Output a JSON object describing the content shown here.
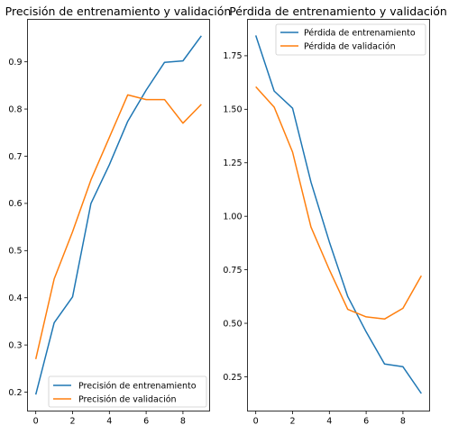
{
  "chart_data": [
    {
      "type": "line",
      "title": "Precisión de entrenamiento y validación",
      "xlabel": "",
      "ylabel": "",
      "x": [
        0,
        1,
        2,
        3,
        4,
        5,
        6,
        7,
        8,
        9
      ],
      "xlim": [
        -0.45,
        9.45
      ],
      "ylim": [
        0.16,
        0.99
      ],
      "xticks": [
        0,
        2,
        4,
        6,
        8
      ],
      "yticks": [
        0.2,
        0.3,
        0.4,
        0.5,
        0.6,
        0.7,
        0.8,
        0.9
      ],
      "ytick_labels": [
        "0.2",
        "0.3",
        "0.4",
        "0.5",
        "0.6",
        "0.7",
        "0.8",
        "0.9"
      ],
      "grid": false,
      "legend": "lower-right",
      "series": [
        {
          "name": "Precisión de entrenamiento",
          "color": "#1f77b4",
          "values": [
            0.195,
            0.347,
            0.402,
            0.6,
            0.682,
            0.774,
            0.84,
            0.899,
            0.902,
            0.955
          ]
        },
        {
          "name": "Precisión de validación",
          "color": "#ff7f0e",
          "values": [
            0.27,
            0.44,
            0.54,
            0.65,
            0.74,
            0.83,
            0.82,
            0.82,
            0.77,
            0.81
          ]
        }
      ]
    },
    {
      "type": "line",
      "title": "Pérdida de entrenamiento y validación",
      "xlabel": "",
      "ylabel": "",
      "x": [
        0,
        1,
        2,
        3,
        4,
        5,
        6,
        7,
        8,
        9
      ],
      "xlim": [
        -0.45,
        9.45
      ],
      "ylim": [
        0.09,
        1.92
      ],
      "xticks": [
        0,
        2,
        4,
        6,
        8
      ],
      "yticks": [
        0.25,
        0.5,
        0.75,
        1.0,
        1.25,
        1.5,
        1.75
      ],
      "ytick_labels": [
        "0.25",
        "0.50",
        "0.75",
        "1.00",
        "1.25",
        "1.50",
        "1.75"
      ],
      "grid": false,
      "legend": "upper-right",
      "series": [
        {
          "name": "Pérdida de entrenamiento",
          "color": "#1f77b4",
          "values": [
            1.845,
            1.585,
            1.505,
            1.16,
            0.88,
            0.625,
            0.46,
            0.31,
            0.297,
            0.172
          ]
        },
        {
          "name": "Pérdida de validación",
          "color": "#ff7f0e",
          "values": [
            1.605,
            1.51,
            1.3,
            0.95,
            0.75,
            0.565,
            0.53,
            0.52,
            0.57,
            0.722
          ]
        }
      ]
    }
  ]
}
